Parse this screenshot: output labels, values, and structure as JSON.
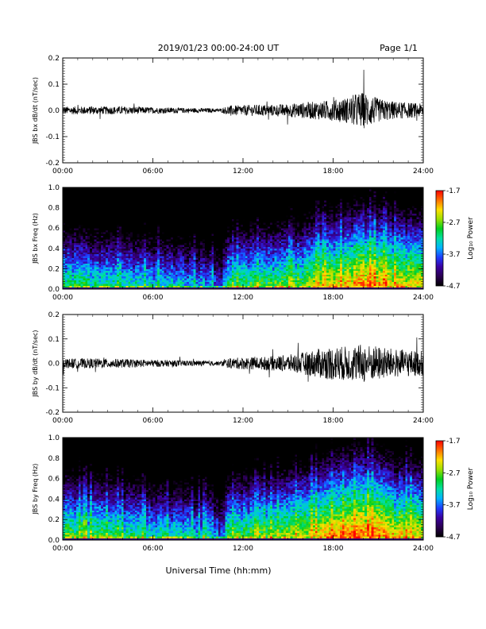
{
  "header": {
    "title": "2019/01/23  00:00-24:00 UT",
    "page": "Page 1/1"
  },
  "x_axis": {
    "tick_labels": [
      "00:00",
      "06:00",
      "12:00",
      "18:00",
      "24:00"
    ],
    "title": "Universal Time (hh:mm)"
  },
  "colorbar": {
    "tick_labels": [
      "-1.7",
      "-2.7",
      "-3.7",
      "-4.7"
    ],
    "title": "Log₁₀ Power",
    "colors": [
      "#000000",
      "#2a0050",
      "#3a00a0",
      "#1e3cff",
      "#00b4ff",
      "#00e0a0",
      "#00d020",
      "#9be000",
      "#ffe000",
      "#ff7000",
      "#ff0000"
    ]
  },
  "chart_data": [
    {
      "type": "line",
      "ylabel": "JBS bx dB/dt (nT/sec)",
      "xlim": [
        0,
        24
      ],
      "ylim": [
        -0.2,
        0.2
      ],
      "y_tick_labels": [
        "0.2",
        "0.1",
        "0.0",
        "-0.1",
        "-0.2"
      ],
      "y_tick_values": [
        0.2,
        0.1,
        0.0,
        -0.1,
        -0.2
      ],
      "x_tick_values": [
        0,
        6,
        12,
        18,
        24
      ],
      "series": [
        {
          "x": [
            0,
            2,
            4,
            6,
            8,
            10,
            10.5,
            11,
            12,
            13,
            14,
            15,
            16,
            17,
            18,
            19,
            19.5,
            20,
            20.5,
            21,
            22,
            23,
            24
          ],
          "amplitude": [
            0.015,
            0.015,
            0.015,
            0.012,
            0.01,
            0.008,
            0.006,
            0.018,
            0.02,
            0.022,
            0.022,
            0.025,
            0.03,
            0.035,
            0.04,
            0.05,
            0.065,
            0.07,
            0.06,
            0.045,
            0.035,
            0.03,
            0.025
          ],
          "color": "#000000"
        }
      ]
    },
    {
      "type": "heatmap",
      "ylabel": "JBS bx Freq (Hz)",
      "xlim": [
        0,
        24
      ],
      "ylim": [
        0,
        1.0
      ],
      "y_tick_labels": [
        "1.0",
        "0.8",
        "0.6",
        "0.4",
        "0.2",
        "0.0"
      ],
      "y_tick_values": [
        1.0,
        0.8,
        0.6,
        0.4,
        0.2,
        0.0
      ],
      "x_tick_values": [
        0,
        6,
        12,
        18,
        24
      ],
      "zlim": [
        -4.7,
        -1.7
      ],
      "zlabel": "Log₁₀ Power",
      "activity": [
        [
          0,
          0.55
        ],
        [
          2,
          0.5
        ],
        [
          4,
          0.45
        ],
        [
          6,
          0.42
        ],
        [
          8,
          0.4
        ],
        [
          10,
          0.35
        ],
        [
          10.5,
          0.2
        ],
        [
          11,
          0.5
        ],
        [
          12,
          0.55
        ],
        [
          14,
          0.58
        ],
        [
          16,
          0.65
        ],
        [
          17,
          0.72
        ],
        [
          18,
          0.78
        ],
        [
          19,
          0.82
        ],
        [
          20,
          0.9
        ],
        [
          21,
          0.85
        ],
        [
          22,
          0.8
        ],
        [
          24,
          0.75
        ]
      ]
    },
    {
      "type": "line",
      "ylabel": "JBS by dB/dt (nT/sec)",
      "xlim": [
        0,
        24
      ],
      "ylim": [
        -0.2,
        0.2
      ],
      "y_tick_labels": [
        "0.2",
        "0.1",
        "0.0",
        "-0.1",
        "-0.2"
      ],
      "y_tick_values": [
        0.2,
        0.1,
        0.0,
        -0.1,
        -0.2
      ],
      "x_tick_values": [
        0,
        6,
        12,
        18,
        24
      ],
      "series": [
        {
          "x": [
            0,
            2,
            4,
            6,
            8,
            10,
            10.5,
            11,
            12,
            13,
            14,
            15,
            16,
            17,
            18,
            19,
            19.5,
            20,
            20.5,
            21,
            22,
            23,
            24
          ],
          "amplitude": [
            0.02,
            0.02,
            0.018,
            0.015,
            0.012,
            0.01,
            0.008,
            0.02,
            0.025,
            0.025,
            0.03,
            0.035,
            0.045,
            0.06,
            0.07,
            0.07,
            0.075,
            0.08,
            0.075,
            0.07,
            0.06,
            0.055,
            0.05
          ],
          "color": "#000000"
        }
      ]
    },
    {
      "type": "heatmap",
      "ylabel": "JBS by Freq (Hz)",
      "xlim": [
        0,
        24
      ],
      "ylim": [
        0,
        1.0
      ],
      "y_tick_labels": [
        "1.0",
        "0.8",
        "0.6",
        "0.4",
        "0.2",
        "0.0"
      ],
      "y_tick_values": [
        1.0,
        0.8,
        0.6,
        0.4,
        0.2,
        0.0
      ],
      "x_tick_values": [
        0,
        6,
        12,
        18,
        24
      ],
      "zlim": [
        -4.7,
        -1.7
      ],
      "zlabel": "Log₁₀ Power",
      "activity": [
        [
          0,
          0.62
        ],
        [
          2,
          0.58
        ],
        [
          4,
          0.52
        ],
        [
          6,
          0.48
        ],
        [
          8,
          0.45
        ],
        [
          10,
          0.42
        ],
        [
          10.5,
          0.25
        ],
        [
          11,
          0.55
        ],
        [
          12,
          0.6
        ],
        [
          14,
          0.62
        ],
        [
          16,
          0.72
        ],
        [
          17,
          0.8
        ],
        [
          18,
          0.85
        ],
        [
          19,
          0.88
        ],
        [
          20,
          0.95
        ],
        [
          21,
          0.9
        ],
        [
          22,
          0.82
        ],
        [
          24,
          0.75
        ]
      ]
    }
  ]
}
